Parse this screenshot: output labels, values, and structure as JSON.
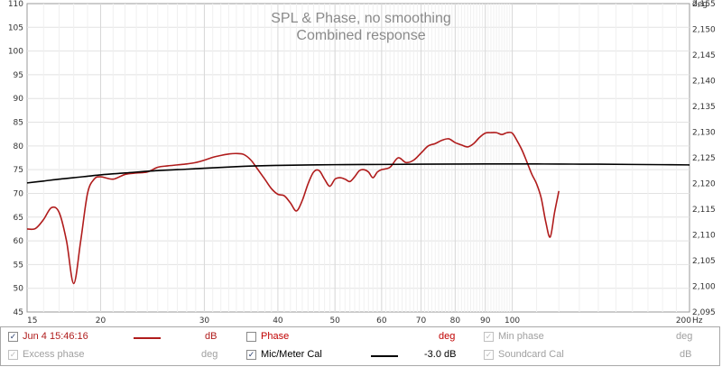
{
  "chart_data": {
    "type": "line",
    "title": "SPL & Phase, no smoothing",
    "subtitle": "Combined response",
    "x_scale": "log",
    "xlim": [
      15,
      200
    ],
    "x_unit": "Hz",
    "x_ticks": [
      15,
      20,
      30,
      40,
      50,
      60,
      70,
      80,
      90,
      100,
      200
    ],
    "ylim": [
      45,
      110
    ],
    "y_ticks": [
      45,
      50,
      55,
      60,
      65,
      70,
      75,
      80,
      85,
      90,
      95,
      100,
      105,
      110
    ],
    "y2lim": [
      2095,
      2155
    ],
    "y2_unit": "deg",
    "y2_ticks": [
      "2,095",
      "2,100",
      "2,105",
      "2,110",
      "2,115",
      "2,120",
      "2,125",
      "2,130",
      "2,135",
      "2,140",
      "2,145",
      "2,150",
      "2,155"
    ],
    "grid": true,
    "series": [
      {
        "color": "#b01c1c",
        "x": [
          15,
          15.5,
          16,
          16.5,
          17,
          17.5,
          18,
          18.5,
          19,
          19.5,
          20,
          21,
          22,
          23,
          24,
          25,
          26,
          27,
          28,
          29,
          30,
          31,
          32,
          33,
          34,
          35,
          36,
          37,
          38,
          39,
          40,
          41,
          42,
          43,
          44,
          45,
          46,
          47,
          48,
          49,
          50,
          51,
          52,
          53,
          54,
          55,
          56,
          57,
          58,
          59,
          60,
          62,
          64,
          66,
          68,
          70,
          72,
          74,
          76,
          78,
          80,
          82,
          84,
          86,
          88,
          90,
          92,
          94,
          96,
          98,
          100,
          102,
          104,
          106,
          108,
          110,
          112,
          114,
          116,
          118,
          120
        ],
        "values": [
          62.5,
          62.6,
          64.5,
          67,
          66,
          60,
          51,
          60,
          70,
          73,
          73.5,
          73,
          74,
          74.3,
          74.5,
          75.5,
          75.8,
          76,
          76.2,
          76.5,
          77,
          77.6,
          78,
          78.3,
          78.4,
          78.2,
          77,
          75,
          73,
          71,
          69.8,
          69.5,
          68,
          66.3,
          68.5,
          72,
          74.5,
          74.8,
          73,
          71.5,
          73,
          73.3,
          73,
          72.5,
          73.5,
          74.8,
          75,
          74.5,
          73.3,
          74.5,
          75,
          75.5,
          77.5,
          76.5,
          77,
          78.5,
          80,
          80.5,
          81.2,
          81.5,
          80.7,
          80.2,
          79.8,
          80.5,
          81.8,
          82.7,
          82.8,
          82.8,
          82.4,
          82.8,
          82.7,
          81,
          79,
          76.5,
          74,
          72,
          69,
          64,
          60.8,
          66,
          70.5
        ]
      },
      {
        "color": "#000000",
        "x": [
          15,
          16,
          17,
          18,
          20,
          22,
          25,
          28,
          30,
          35,
          40,
          45,
          50,
          60,
          70,
          80,
          90,
          100,
          110,
          120,
          140,
          160,
          180,
          200
        ],
        "values": [
          72.2,
          72.6,
          73,
          73.3,
          73.9,
          74.3,
          74.8,
          75.1,
          75.3,
          75.7,
          75.9,
          76,
          76.05,
          76.1,
          76.15,
          76.18,
          76.2,
          76.2,
          76.2,
          76.18,
          76.15,
          76.1,
          76.05,
          76.0
        ]
      }
    ]
  },
  "legend": {
    "row1": {
      "measurement_label": "Jun 4 15:46:16",
      "measurement_unit": "dB",
      "phase_label": "Phase",
      "phase_unit": "deg",
      "min_phase_label": "Min phase",
      "min_phase_unit": "deg"
    },
    "row2": {
      "excess_phase_label": "Excess phase",
      "excess_phase_unit": "deg",
      "mic_cal_label": "Mic/Meter Cal",
      "mic_cal_value": "-3.0 dB",
      "soundcard_cal_label": "Soundcard Cal",
      "soundcard_cal_unit": "dB"
    },
    "colors": {
      "measurement": "#b01c1c",
      "active": "#c00000",
      "disabled": "#a0a0a0",
      "cal": "#000000"
    }
  }
}
